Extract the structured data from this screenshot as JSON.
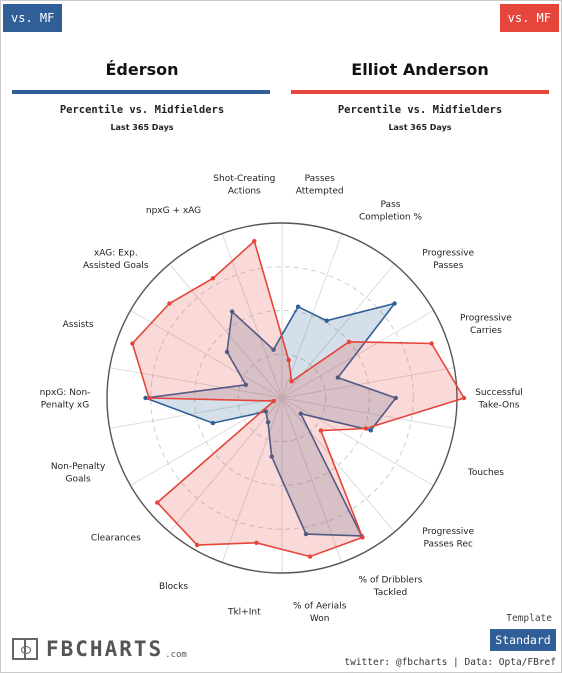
{
  "header": {
    "left_badge": "vs. MF",
    "right_badge": "vs. MF",
    "left_player": "Éderson",
    "right_player": "Elliot Anderson",
    "subtitle": "Percentile vs. Midfielders",
    "period": "Last 365 Days"
  },
  "colors": {
    "left": "#2f5f96",
    "right": "#e5453a"
  },
  "chart_data": {
    "type": "radar",
    "range": [
      0,
      100
    ],
    "axes": [
      "Passes\nAttempted",
      "Pass\nCompletion %",
      "Progressive\nPasses",
      "Progressive\nCarries",
      "Successful\nTake-Ons",
      "Touches",
      "Progressive\nPasses Rec",
      "% of Dribblers\nTackled",
      "% of Aerials\nWon",
      "Tkl+Int",
      "Blocks",
      "Clearances",
      "Non-Penalty\nGoals",
      "npxG: Non-\nPenalty xG",
      "Assists",
      "xAG: Exp.\nAssisted Goals",
      "npxG + xAG",
      "Shot-Creating\nActions"
    ],
    "series": [
      {
        "name": "Éderson",
        "values": [
          53,
          51,
          84,
          34,
          65,
          54,
          14,
          91,
          79,
          34,
          16,
          12,
          42,
          78,
          22,
          41,
          57,
          28
        ]
      },
      {
        "name": "Elliot Anderson",
        "values": [
          22,
          11,
          50,
          91,
          104,
          51,
          29,
          92,
          92,
          84,
          97,
          93,
          5,
          76,
          91,
          84,
          79,
          91
        ]
      }
    ]
  },
  "footer": {
    "template_label": "Template",
    "standard_button": "Standard",
    "credit": "twitter: @fbcharts | Data: Opta/FBref",
    "logo_text": "FBCHARTS",
    "logo_suffix": ".com"
  }
}
